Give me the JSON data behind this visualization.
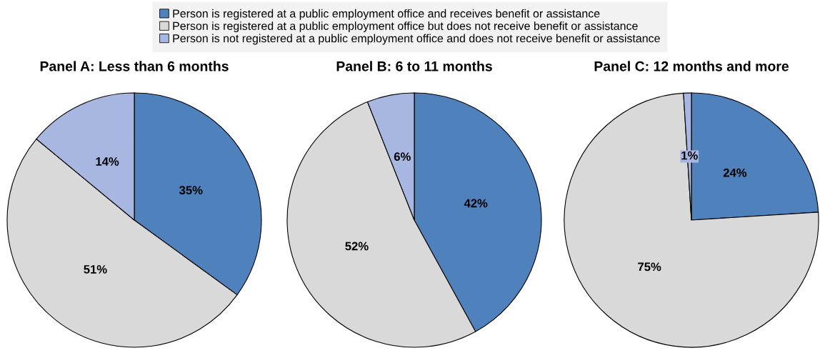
{
  "chart_data": [
    {
      "type": "pie",
      "title": "Panel A: Less than 6 months",
      "categories": [
        "Person is registered at a public employment office and receives benefit or assistance",
        "Person is registered at a public employment office but does not receive benefit or assistance",
        "Person is not registered at a public employment office and does not receive benefit or assistance"
      ],
      "values": [
        35,
        51,
        14
      ],
      "value_labels": [
        "35%",
        "51%",
        "14%"
      ],
      "colors": [
        "#4f81bd",
        "#d9d9d9",
        "#a7b7e2"
      ],
      "legend": "top"
    },
    {
      "type": "pie",
      "title": "Panel B: 6 to 11 months",
      "categories": [
        null,
        null,
        null
      ],
      "values": [
        42,
        52,
        6
      ],
      "value_labels": [
        "42%",
        "52%",
        "6%"
      ],
      "colors": [
        "#4f81bd",
        "#d9d9d9",
        "#a7b7e2"
      ]
    },
    {
      "type": "pie",
      "title": "Panel C: 12 months and more",
      "categories": [
        null,
        null,
        null
      ],
      "values": [
        24,
        75,
        1
      ],
      "value_labels": [
        "24%",
        "75%",
        "1%"
      ],
      "colors": [
        "#4f81bd",
        "#d9d9d9",
        "#a7b7e2"
      ]
    }
  ]
}
